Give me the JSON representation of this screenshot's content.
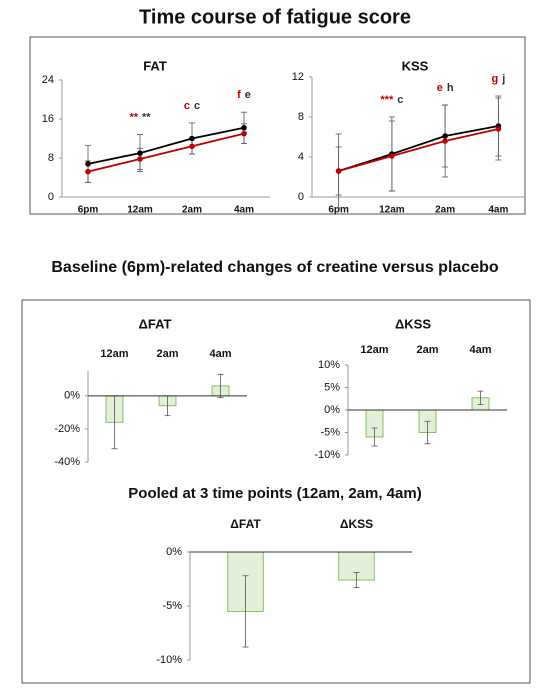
{
  "sections": [
    {
      "title": "Time course of fatigue score"
    },
    {
      "title": "Baseline (6pm)-related changes of creatine versus placebo"
    }
  ],
  "chart_data": [
    {
      "type": "line",
      "title": "FAT",
      "categories": [
        "6pm",
        "12am",
        "2am",
        "4am"
      ],
      "series": [
        {
          "color": "#000000",
          "values": [
            6.8,
            9.0,
            12.0,
            14.2
          ],
          "errors": [
            3.8,
            3.8,
            3.2,
            3.2
          ]
        },
        {
          "color": "#c00000",
          "values": [
            5.2,
            7.8,
            10.4,
            13.0
          ],
          "errors": [
            2.2,
            2.2,
            1.6,
            2.0
          ]
        }
      ],
      "ylim": [
        0,
        24
      ],
      "yticks": [
        0,
        8,
        16,
        24
      ],
      "annotations": [
        {
          "category": 1,
          "labels": [
            {
              "text": "**",
              "color": "#c00000"
            },
            {
              "text": "**",
              "color": "#333333"
            }
          ]
        },
        {
          "category": 2,
          "labels": [
            {
              "text": "c",
              "color": "#c00000"
            },
            {
              "text": "c",
              "color": "#333333"
            }
          ]
        },
        {
          "category": 3,
          "labels": [
            {
              "text": "f",
              "color": "#c00000"
            },
            {
              "text": "e",
              "color": "#333333"
            }
          ]
        }
      ]
    },
    {
      "type": "line",
      "title": "KSS",
      "categories": [
        "6pm",
        "12am",
        "2am",
        "4am"
      ],
      "series": [
        {
          "color": "#000000",
          "values": [
            2.6,
            4.3,
            6.1,
            7.1
          ],
          "errors": [
            3.7,
            3.7,
            3.1,
            3.0
          ]
        },
        {
          "color": "#c00000",
          "values": [
            2.6,
            4.1,
            5.6,
            6.8
          ],
          "errors": [
            2.4,
            3.5,
            3.6,
            3.1
          ]
        }
      ],
      "ylim": [
        0,
        12
      ],
      "yticks": [
        0,
        4,
        8,
        12
      ],
      "annotations": [
        {
          "category": 1,
          "labels": [
            {
              "text": "***",
              "color": "#c00000"
            },
            {
              "text": "c",
              "color": "#333333"
            }
          ]
        },
        {
          "category": 2,
          "labels": [
            {
              "text": "e",
              "color": "#c00000"
            },
            {
              "text": "h",
              "color": "#333333"
            }
          ]
        },
        {
          "category": 3,
          "labels": [
            {
              "text": "g",
              "color": "#c00000"
            },
            {
              "text": "j",
              "color": "#333333"
            }
          ]
        }
      ]
    },
    {
      "type": "bar",
      "title": "ΔFAT",
      "categories": [
        "12am",
        "2am",
        "4am"
      ],
      "values": [
        -16,
        -6,
        6
      ],
      "errors": [
        16,
        6,
        7
      ],
      "color": "#e2f0d9",
      "edge_color": "#70ad47",
      "ylim": [
        -40,
        15
      ],
      "yticks": [
        {
          "value": 0,
          "label": "0%"
        },
        {
          "value": -20,
          "label": "-20%"
        },
        {
          "value": -40,
          "label": "-40%"
        }
      ]
    },
    {
      "type": "bar",
      "title": "ΔKSS",
      "categories": [
        "12am",
        "2am",
        "4am"
      ],
      "values": [
        -6,
        -5,
        2.7
      ],
      "errors": [
        2,
        2.5,
        1.5
      ],
      "color": "#e2f0d9",
      "edge_color": "#70ad47",
      "ylim": [
        -10,
        10
      ],
      "yticks": [
        {
          "value": 10,
          "label": "10%"
        },
        {
          "value": 5,
          "label": "5%"
        },
        {
          "value": 0,
          "label": "0%"
        },
        {
          "value": -5,
          "label": "-5%"
        },
        {
          "value": -10,
          "label": "-10%"
        }
      ]
    },
    {
      "type": "bar",
      "title": "Pooled at 3 time points (12am, 2am, 4am)",
      "categories": [
        "ΔFAT",
        "ΔKSS"
      ],
      "values": [
        -5.5,
        -2.6
      ],
      "errors": [
        3.3,
        0.7
      ],
      "color": "#e2f0d9",
      "edge_color": "#70ad47",
      "ylim": [
        -10,
        0
      ],
      "yticks": [
        {
          "value": 0,
          "label": "0%"
        },
        {
          "value": -5,
          "label": "-5%"
        },
        {
          "value": -10,
          "label": "-10%"
        }
      ]
    }
  ]
}
